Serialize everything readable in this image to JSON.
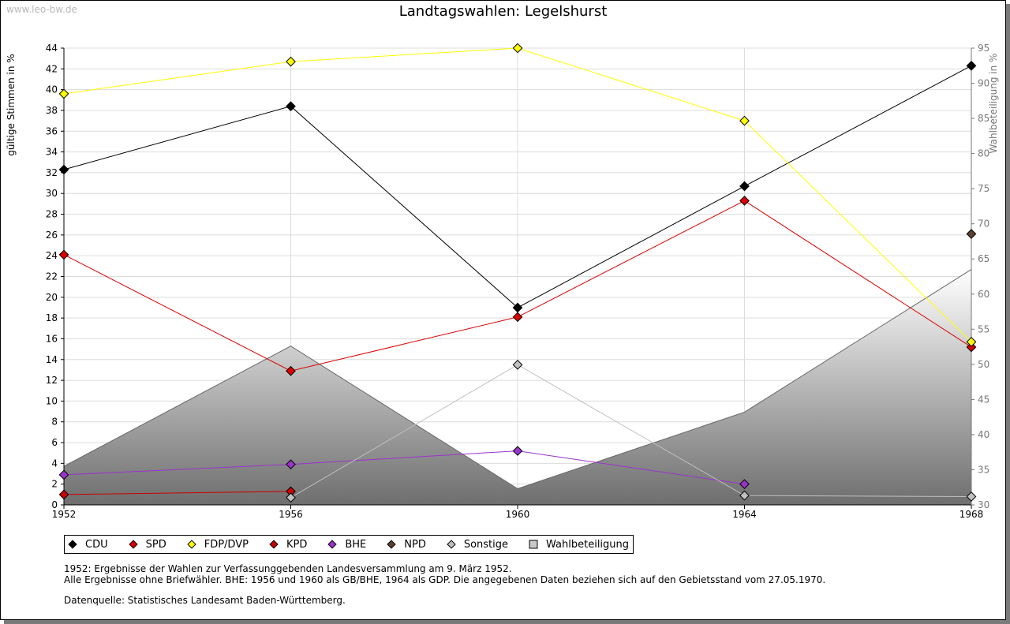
{
  "watermark": "www.leo-bw.de",
  "chart_data": {
    "type": "line",
    "title": "Landtagswahlen: Legelshurst",
    "ylabel": "gültige Stimmen in %",
    "y2label": "Wahlbeteiligung in %",
    "x": [
      1952,
      1956,
      1960,
      1964,
      1968
    ],
    "ylim": [
      0,
      44
    ],
    "yticks": [
      0,
      2,
      4,
      6,
      8,
      10,
      12,
      14,
      16,
      18,
      20,
      22,
      24,
      26,
      28,
      30,
      32,
      34,
      36,
      38,
      40,
      42,
      44
    ],
    "y2lim": [
      30,
      95
    ],
    "y2ticks": [
      30,
      35,
      40,
      45,
      50,
      55,
      60,
      65,
      70,
      75,
      80,
      85,
      90,
      95
    ],
    "series": [
      {
        "name": "CDU",
        "color": "#000000",
        "values": [
          32.3,
          38.4,
          19.0,
          30.7,
          42.3
        ]
      },
      {
        "name": "SPD",
        "color": "#dd0000",
        "values": [
          24.1,
          12.9,
          18.1,
          29.3,
          15.2
        ]
      },
      {
        "name": "FDP/DVP",
        "color": "#ffff00",
        "values": [
          39.6,
          42.7,
          44.0,
          37.0,
          15.7
        ]
      },
      {
        "name": "KPD",
        "color": "#cc0000",
        "values": [
          1.0,
          1.3,
          null,
          null,
          null
        ]
      },
      {
        "name": "BHE",
        "color": "#9933cc",
        "values": [
          2.9,
          3.9,
          5.2,
          2.0,
          null
        ]
      },
      {
        "name": "NPD",
        "color": "#5a4030",
        "values": [
          null,
          null,
          null,
          null,
          26.1
        ]
      },
      {
        "name": "Sonstige",
        "color": "#c0c0c0",
        "values": [
          null,
          0.7,
          13.5,
          0.9,
          0.8
        ]
      },
      {
        "name": "Wahlbeteiligung",
        "color": "#999999",
        "axis": "right",
        "type": "area",
        "values": [
          35.5,
          52.6,
          32.3,
          43.2,
          63.5
        ]
      }
    ]
  },
  "notes": {
    "line1": "1952: Ergebnisse der Wahlen zur Verfassunggebenden Landesversammlung am 9. März 1952.",
    "line2": "Alle Ergebnisse ohne Briefwähler. BHE: 1956 und 1960 als GB/BHE, 1964 als GDP. Die angegebenen Daten beziehen sich auf den Gebietsstand vom 27.05.1970.",
    "line3": "Datenquelle: Statistisches Landesamt Baden-Württemberg."
  }
}
